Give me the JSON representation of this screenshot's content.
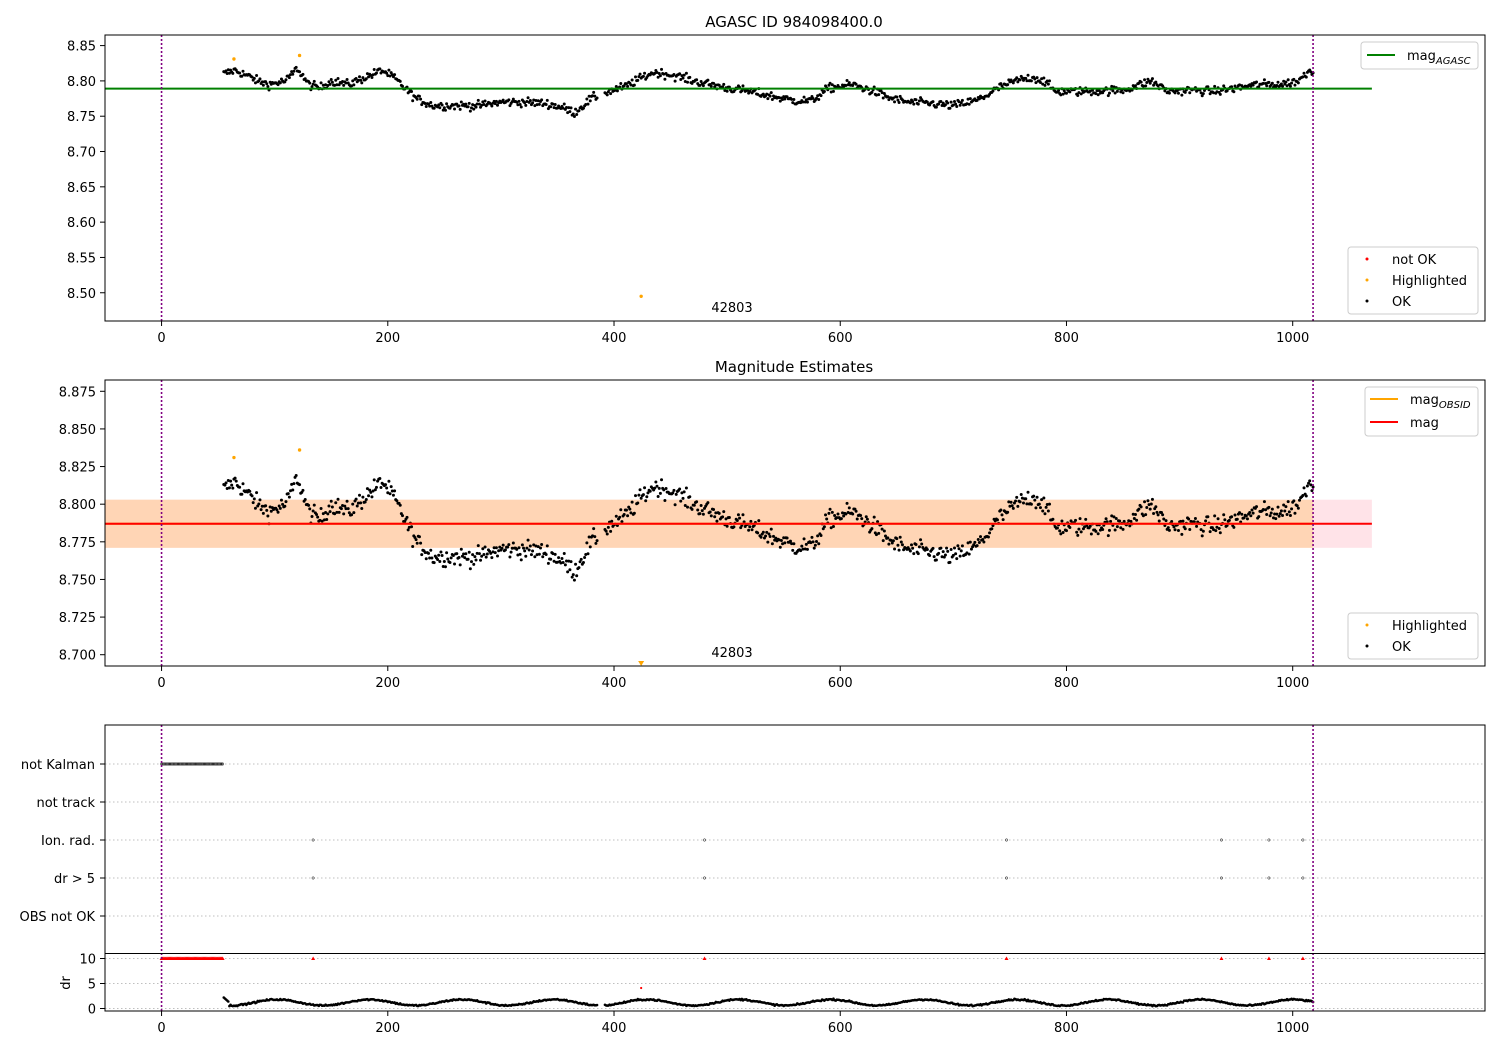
{
  "chart_data": [
    {
      "type": "scatter",
      "title": "AGASC ID 984098400.0",
      "obsid_label": "42803",
      "xlim": [
        -50,
        1170
      ],
      "ylim": [
        8.46,
        8.865
      ],
      "xticks": [
        0,
        200,
        400,
        600,
        800,
        1000
      ],
      "xtick_labels": [
        "0",
        "200",
        "400",
        "600",
        "800",
        "1000"
      ],
      "yticks": [
        8.5,
        8.55,
        8.6,
        8.65,
        8.7,
        8.75,
        8.8,
        8.85
      ],
      "ytick_labels": [
        "8.50",
        "8.55",
        "8.60",
        "8.65",
        "8.70",
        "8.75",
        "8.80",
        "8.85"
      ],
      "vlines": [
        0,
        1018
      ],
      "mag_agasc": 8.789,
      "hline_xrange": [
        -50,
        1070
      ],
      "legend_lines": [
        {
          "name": "mag",
          "subscript": "AGASC",
          "color": "#008000"
        }
      ],
      "legend_markers": [
        {
          "name": "not OK",
          "color": "#ff0000"
        },
        {
          "name": "Highlighted",
          "color": "#ffa500"
        },
        {
          "name": "OK",
          "color": "#000000"
        }
      ],
      "highlighted": [
        [
          64,
          8.831
        ],
        [
          122,
          8.836
        ],
        [
          424,
          8.495
        ]
      ],
      "series_anchors": [
        [
          55,
          8.81
        ],
        [
          65,
          8.815
        ],
        [
          75,
          8.808
        ],
        [
          85,
          8.8
        ],
        [
          95,
          8.795
        ],
        [
          110,
          8.8
        ],
        [
          120,
          8.818
        ],
        [
          130,
          8.795
        ],
        [
          140,
          8.79
        ],
        [
          150,
          8.8
        ],
        [
          165,
          8.795
        ],
        [
          180,
          8.805
        ],
        [
          195,
          8.815
        ],
        [
          205,
          8.805
        ],
        [
          215,
          8.79
        ],
        [
          225,
          8.775
        ],
        [
          240,
          8.765
        ],
        [
          260,
          8.765
        ],
        [
          280,
          8.765
        ],
        [
          300,
          8.77
        ],
        [
          320,
          8.77
        ],
        [
          340,
          8.768
        ],
        [
          355,
          8.762
        ],
        [
          365,
          8.755
        ],
        [
          380,
          8.775
        ],
        [
          395,
          8.785
        ],
        [
          410,
          8.792
        ],
        [
          425,
          8.805
        ],
        [
          435,
          8.812
        ],
        [
          445,
          8.81
        ],
        [
          460,
          8.805
        ],
        [
          470,
          8.8
        ],
        [
          485,
          8.795
        ],
        [
          500,
          8.79
        ],
        [
          520,
          8.785
        ],
        [
          540,
          8.778
        ],
        [
          560,
          8.772
        ],
        [
          575,
          8.772
        ],
        [
          590,
          8.79
        ],
        [
          610,
          8.795
        ],
        [
          630,
          8.785
        ],
        [
          645,
          8.775
        ],
        [
          660,
          8.77
        ],
        [
          680,
          8.768
        ],
        [
          700,
          8.765
        ],
        [
          720,
          8.772
        ],
        [
          730,
          8.78
        ],
        [
          740,
          8.79
        ],
        [
          755,
          8.8
        ],
        [
          770,
          8.805
        ],
        [
          780,
          8.8
        ],
        [
          790,
          8.785
        ],
        [
          820,
          8.785
        ],
        [
          850,
          8.787
        ],
        [
          875,
          8.8
        ],
        [
          890,
          8.785
        ],
        [
          910,
          8.787
        ],
        [
          930,
          8.785
        ],
        [
          950,
          8.79
        ],
        [
          970,
          8.795
        ],
        [
          990,
          8.795
        ],
        [
          1005,
          8.8
        ],
        [
          1015,
          8.815
        ]
      ]
    },
    {
      "type": "scatter",
      "title": "Magnitude Estimates",
      "obsid_label": "42803",
      "xlim": [
        -50,
        1170
      ],
      "ylim": [
        8.6925,
        8.8825
      ],
      "xticks": [
        0,
        200,
        400,
        600,
        800,
        1000
      ],
      "xtick_labels": [
        "0",
        "200",
        "400",
        "600",
        "800",
        "1000"
      ],
      "yticks": [
        8.7,
        8.725,
        8.75,
        8.775,
        8.8,
        8.825,
        8.85,
        8.875
      ],
      "ytick_labels": [
        "8.700",
        "8.725",
        "8.750",
        "8.775",
        "8.800",
        "8.825",
        "8.850",
        "8.875"
      ],
      "vlines": [
        0,
        1018
      ],
      "mag": 8.787,
      "mag_band": [
        8.771,
        8.803
      ],
      "mag_obsid": 8.787,
      "obsid_band": [
        8.771,
        8.803
      ],
      "band_xrange": [
        -50,
        1070
      ],
      "obsid_xrange": [
        -50,
        1018
      ],
      "legend_lines": [
        {
          "name": "mag",
          "subscript": "OBSID",
          "color": "#ffa500"
        },
        {
          "name": "mag",
          "subscript": "",
          "color": "#ff0000"
        }
      ],
      "legend_markers": [
        {
          "name": "Highlighted",
          "color": "#ffa500"
        },
        {
          "name": "OK",
          "color": "#000000"
        }
      ],
      "highlighted": [
        [
          64,
          8.831
        ],
        [
          122,
          8.836
        ]
      ],
      "offscale_markers": [
        [
          424,
          8.6925
        ]
      ]
    },
    {
      "type": "scatter",
      "category_labels": [
        "not Kalman",
        "not track",
        "Ion. rad.",
        "dr > 5",
        "OBS not OK"
      ],
      "flags": {
        "not Kalman": {
          "range": [
            0,
            54
          ]
        },
        "not track": {
          "points": []
        },
        "Ion. rad.": {
          "points": [
            134,
            480,
            747,
            937,
            979,
            1009
          ]
        },
        "dr > 5": {
          "points": [
            134,
            480,
            747,
            937,
            979,
            1009
          ]
        },
        "OBS not OK": {
          "points": []
        }
      },
      "dr_ylabel": "dr",
      "dr_ylim": [
        -0.5,
        11
      ],
      "dr_yticks": [
        0,
        5,
        10
      ],
      "dr_ytick_labels": [
        "0",
        "5",
        "10"
      ],
      "dr_clip": 10,
      "dr_clipped": {
        "range": [
          0,
          54
        ],
        "points": [
          134,
          480,
          747,
          937,
          979,
          1009
        ]
      },
      "dr_extra": [
        [
          424,
          4.1
        ]
      ],
      "xlim": [
        -50,
        1170
      ],
      "xticks": [
        0,
        200,
        400,
        600,
        800,
        1000
      ],
      "xtick_labels": [
        "0",
        "200",
        "400",
        "600",
        "800",
        "1000"
      ],
      "vlines": [
        0,
        1018
      ]
    }
  ]
}
